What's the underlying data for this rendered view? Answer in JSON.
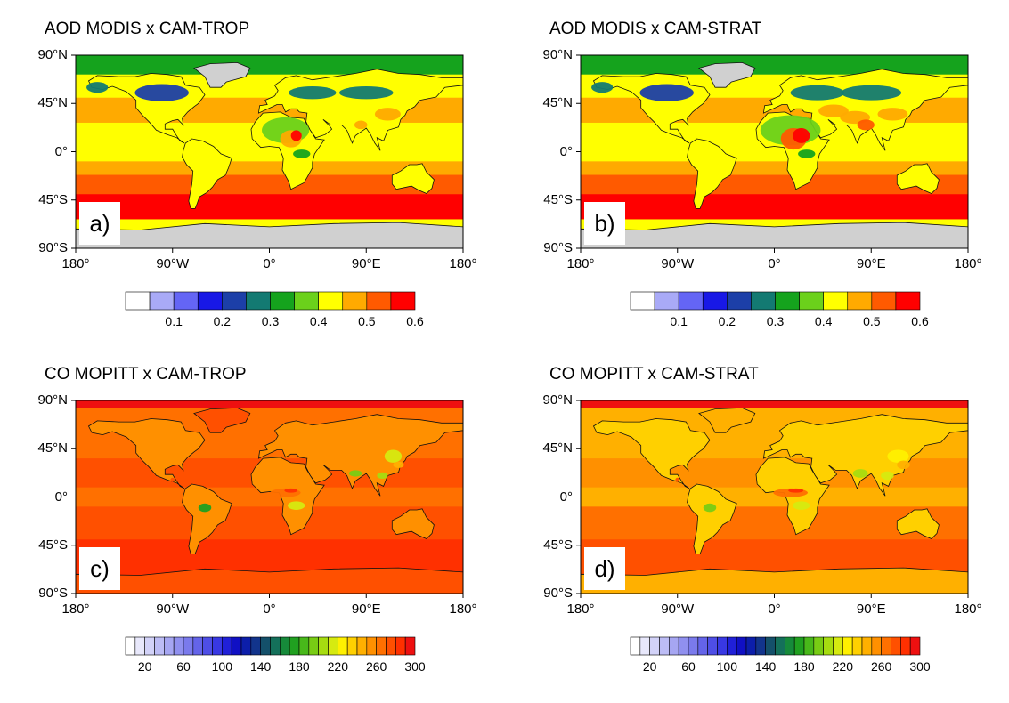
{
  "panels": [
    {
      "id": "a",
      "title": "AOD MODIS x CAM-TROP",
      "letter": "a)",
      "variable": "AOD",
      "strat": false
    },
    {
      "id": "b",
      "title": "AOD MODIS x CAM-STRAT",
      "letter": "b)",
      "variable": "AOD",
      "strat": true
    },
    {
      "id": "c",
      "title": "CO MOPITT x CAM-TROP",
      "letter": "c)",
      "variable": "CO",
      "strat": false
    },
    {
      "id": "d",
      "title": "CO MOPITT x CAM-STRAT",
      "letter": "d)",
      "variable": "CO",
      "strat": true
    }
  ],
  "axes": {
    "lat_ticks": [
      "90°N",
      "45°N",
      "0°",
      "45°S",
      "90°S"
    ],
    "lon_ticks": [
      "180°",
      "90°W",
      "0°",
      "90°E",
      "180°"
    ]
  },
  "colorbars": {
    "AOD": {
      "labels": [
        "0.1",
        "0.2",
        "0.3",
        "0.4",
        "0.5",
        "0.6"
      ],
      "colors": [
        "#ffffff",
        "#a9aaf7",
        "#6465f5",
        "#1818e6",
        "#1c3fa8",
        "#137a72",
        "#15a31d",
        "#6bd11b",
        "#ffff00",
        "#ffaa00",
        "#ff5a00",
        "#ff0000"
      ]
    },
    "CO": {
      "labels": [
        "20",
        "60",
        "100",
        "140",
        "180",
        "220",
        "260",
        "300"
      ],
      "colors": [
        "#ffffff",
        "#e8e8fb",
        "#d2d2f8",
        "#bcbcf5",
        "#a6a6f2",
        "#9090ef",
        "#7a7aec",
        "#6464e9",
        "#4e4ee6",
        "#3838e3",
        "#2020d8",
        "#1010c4",
        "#0c1eaa",
        "#12348c",
        "#14506a",
        "#14705a",
        "#168a3a",
        "#20a020",
        "#48b81a",
        "#78cc14",
        "#a6dc10",
        "#d6ea10",
        "#fff000",
        "#ffd000",
        "#ffb000",
        "#ff9000",
        "#ff7000",
        "#ff5000",
        "#ff3000",
        "#ee1010"
      ]
    }
  }
}
